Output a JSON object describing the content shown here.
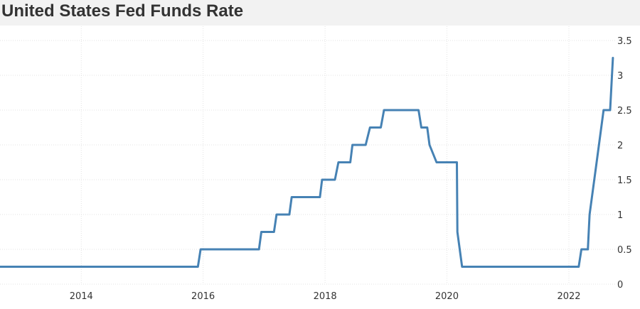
{
  "chart_data": {
    "type": "line",
    "title": "United States Fed Funds Rate",
    "xlabel": "",
    "ylabel": "",
    "x_ticks": [
      "2014",
      "2016",
      "2018",
      "2020",
      "2022"
    ],
    "y_ticks": [
      "0",
      "0.5",
      "1",
      "1.5",
      "2",
      "2.5",
      "3",
      "3.5"
    ],
    "xlim": [
      "2012-09-01",
      "2022-10-05"
    ],
    "ylim": [
      0,
      3.5
    ],
    "grid": true,
    "legend": "none",
    "series": [
      {
        "color": "#4682b4",
        "x": [
          "2012-09-01",
          "2015-12-01",
          "2015-12-17",
          "2016-12-01",
          "2016-12-15",
          "2017-03-01",
          "2017-03-16",
          "2017-06-01",
          "2017-06-15",
          "2017-12-01",
          "2017-12-14",
          "2018-03-01",
          "2018-03-22",
          "2018-06-01",
          "2018-06-14",
          "2018-09-01",
          "2018-09-27",
          "2018-12-01",
          "2018-12-20",
          "2019-07-15",
          "2019-08-01",
          "2019-09-05",
          "2019-09-19",
          "2019-10-31",
          "2020-03-01",
          "2020-03-04",
          "2020-04-01",
          "2022-03-01",
          "2022-03-17",
          "2022-04-25",
          "2022-05-05",
          "2022-06-16",
          "2022-07-28",
          "2022-09-05",
          "2022-09-22"
        ],
        "y": [
          0.25,
          0.25,
          0.5,
          0.5,
          0.75,
          0.75,
          1.0,
          1.0,
          1.25,
          1.25,
          1.5,
          1.5,
          1.75,
          1.75,
          2.0,
          2.0,
          2.25,
          2.25,
          2.5,
          2.5,
          2.25,
          2.25,
          2.0,
          1.75,
          1.75,
          0.75,
          0.25,
          0.25,
          0.5,
          0.5,
          1.0,
          1.75,
          2.5,
          2.5,
          3.25
        ]
      }
    ]
  }
}
